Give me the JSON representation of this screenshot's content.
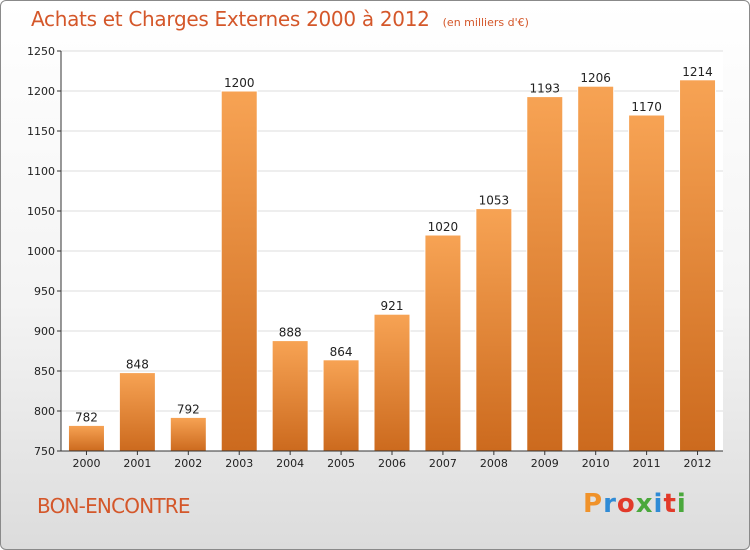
{
  "title": "Achats et Charges Externes 2000 à 2012",
  "subtitle": "(en milliers d'€)",
  "city": "BON-ENCONTRE",
  "brand": "Proxiti",
  "colors": {
    "title": "#d4572a",
    "bar_light": "#f7a354",
    "bar_dark": "#cc6a1e",
    "brand_letters": [
      "#f0922a",
      "#2f8bd6",
      "#e23a2a",
      "#4aa83c",
      "#2f8bd6",
      "#e23a2a",
      "#4aa83c"
    ]
  },
  "chart_data": {
    "type": "bar",
    "title": "Achats et Charges Externes 2000 à 2012",
    "subtitle": "(en milliers d'€)",
    "categories": [
      "2000",
      "2001",
      "2002",
      "2003",
      "2004",
      "2005",
      "2006",
      "2007",
      "2008",
      "2009",
      "2010",
      "2011",
      "2012"
    ],
    "values": [
      782,
      848,
      792,
      1200,
      888,
      864,
      921,
      1020,
      1053,
      1193,
      1206,
      1170,
      1214
    ],
    "ylim": [
      750,
      1250
    ],
    "yticks": [
      750,
      800,
      850,
      900,
      950,
      1000,
      1050,
      1100,
      1150,
      1200,
      1250
    ],
    "grid": true,
    "xlabel": "",
    "ylabel": ""
  }
}
